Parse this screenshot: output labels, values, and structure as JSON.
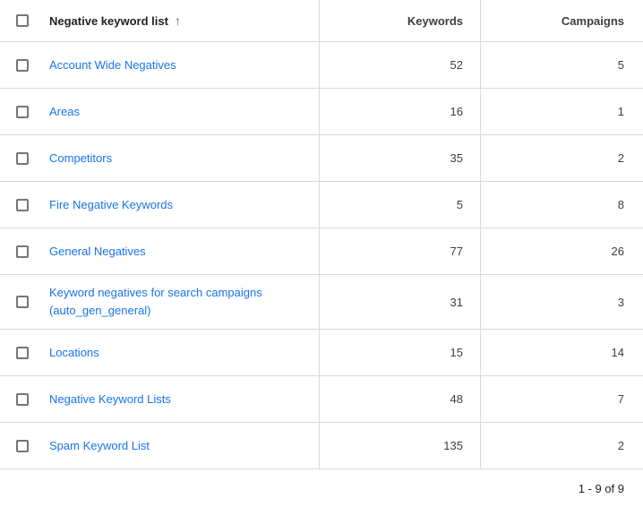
{
  "table": {
    "sort_column": "Negative keyword list",
    "sort_arrow": "↑",
    "columns": [
      "Negative keyword list",
      "Keywords",
      "Campaigns"
    ],
    "rows": [
      {
        "name": "Account Wide Negatives",
        "keywords": "52",
        "campaigns": "5"
      },
      {
        "name": "Areas",
        "keywords": "16",
        "campaigns": "1"
      },
      {
        "name": "Competitors",
        "keywords": "35",
        "campaigns": "2"
      },
      {
        "name": "Fire Negative Keywords",
        "keywords": "5",
        "campaigns": "8"
      },
      {
        "name": "General Negatives",
        "keywords": "77",
        "campaigns": "26"
      },
      {
        "name": "Keyword negatives for search campaigns\n(auto_gen_general)",
        "keywords": "31",
        "campaigns": "3"
      },
      {
        "name": "Locations",
        "keywords": "15",
        "campaigns": "14"
      },
      {
        "name": "Negative Keyword Lists",
        "keywords": "48",
        "campaigns": "7"
      },
      {
        "name": "Spam Keyword List",
        "keywords": "135",
        "campaigns": "2"
      }
    ]
  },
  "footer": {
    "range": "1 - 9 of 9"
  },
  "colors": {
    "link_blue": "#1a73e8",
    "border_gray": "#d9d9d9",
    "header_text": "#202124",
    "cell_text": "#3c4043",
    "checkbox_border": "#757575"
  }
}
